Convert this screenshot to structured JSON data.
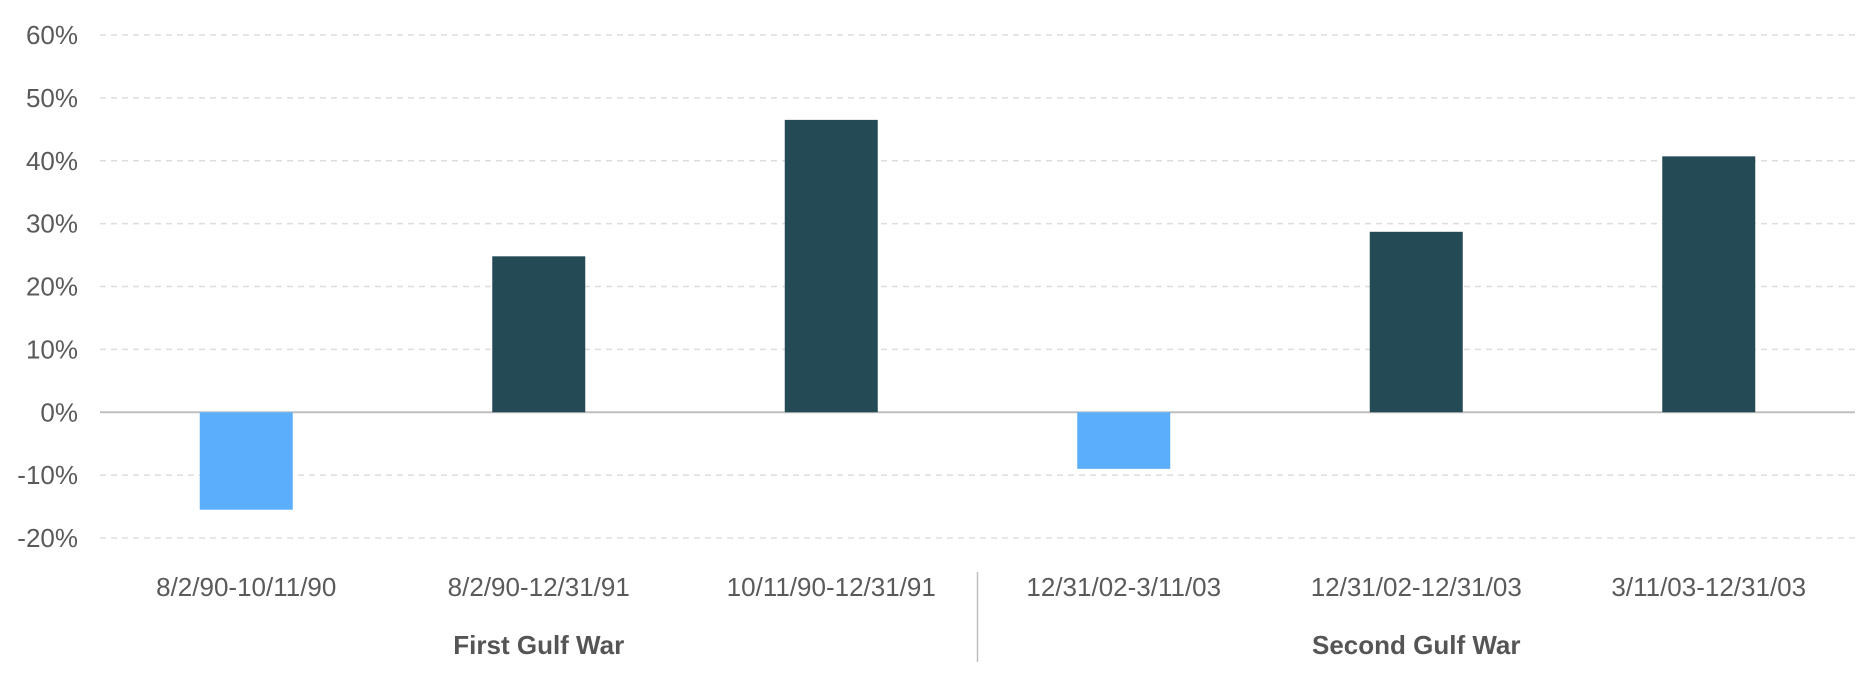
{
  "chart_data": {
    "type": "bar",
    "categories": [
      "8/2/90-10/11/90",
      "8/2/90-12/31/91",
      "10/11/90-12/31/91",
      "12/31/02-3/11/03",
      "12/31/02-12/31/03",
      "3/11/03-12/31/03"
    ],
    "values": [
      -15.5,
      24.8,
      46.5,
      -9.0,
      28.7,
      40.7
    ],
    "groups": [
      {
        "label": "First Gulf War",
        "count": 3
      },
      {
        "label": "Second Gulf War",
        "count": 3
      }
    ],
    "ylim": [
      -20,
      60
    ],
    "yticks": [
      60,
      50,
      40,
      30,
      20,
      10,
      0,
      -10,
      -20
    ],
    "ytick_labels": [
      "60%",
      "50%",
      "40%",
      "30%",
      "20%",
      "10%",
      "0%",
      "-10%",
      "-20%"
    ],
    "grid": true,
    "colors": {
      "positive": "#244a55",
      "negative": "#5aaefb",
      "grid": "#dddddd",
      "zero_line": "#bfbfbf"
    }
  }
}
